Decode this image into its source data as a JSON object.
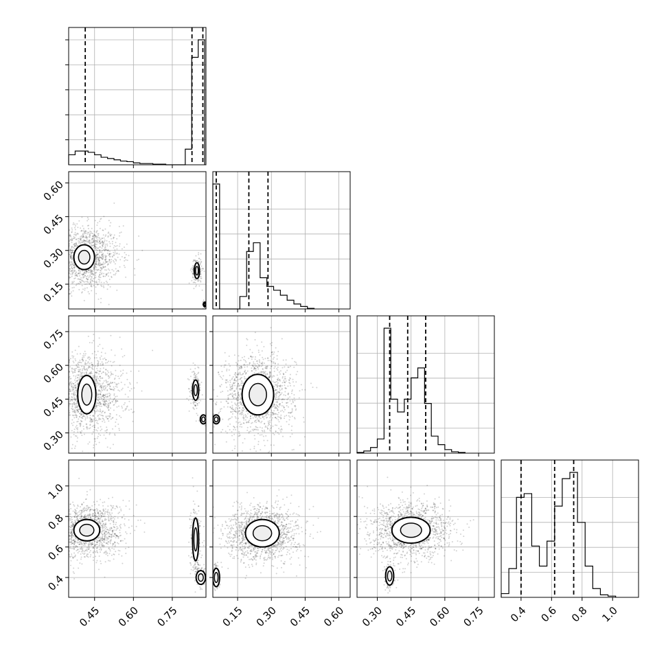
{
  "chart_data": {
    "type": "corner",
    "grid": true,
    "colors": {
      "frame": "#000000",
      "grid": "#b0b0b0",
      "points": "#000000",
      "contour_fill": "#ffffff"
    },
    "params": [
      {
        "range": [
          0.35,
          0.88
        ],
        "ticks": [
          "0.45",
          "0.60",
          "0.75"
        ],
        "tick_values": [
          0.45,
          0.6,
          0.75
        ]
      },
      {
        "range": [
          0.04,
          0.65
        ],
        "ticks": [
          "0.15",
          "0.30",
          "0.45",
          "0.60"
        ],
        "tick_values": [
          0.15,
          0.3,
          0.45,
          0.6
        ]
      },
      {
        "range": [
          0.21,
          0.82
        ],
        "ticks": [
          "0.30",
          "0.45",
          "0.60",
          "0.75"
        ],
        "tick_values": [
          0.3,
          0.45,
          0.6,
          0.75
        ]
      },
      {
        "range": [
          0.27,
          1.17
        ],
        "ticks": [
          "0.4",
          "0.6",
          "0.8",
          "1.0"
        ],
        "tick_values": [
          0.4,
          0.6,
          0.8,
          1.0
        ]
      }
    ],
    "histograms": [
      {
        "quantiles": [
          0.414,
          0.826,
          0.868
        ],
        "bins": [
          0.35,
          0.375,
          0.4,
          0.425,
          0.45,
          0.475,
          0.5,
          0.525,
          0.55,
          0.575,
          0.6,
          0.625,
          0.65,
          0.675,
          0.7,
          0.725,
          0.75,
          0.775,
          0.8,
          0.825,
          0.85,
          0.875
        ],
        "counts": [
          0.08,
          0.11,
          0.11,
          0.1,
          0.08,
          0.06,
          0.05,
          0.04,
          0.03,
          0.025,
          0.015,
          0.01,
          0.01,
          0.005,
          0.005,
          0.0,
          0.0,
          0.0,
          0.125,
          0.86,
          1.0
        ],
        "yticks": [
          0.2,
          0.4,
          0.6,
          0.8,
          1.0
        ]
      },
      {
        "quantiles": [
          0.055,
          0.2,
          0.285
        ],
        "bins": [
          0.04,
          0.07,
          0.1,
          0.13,
          0.16,
          0.19,
          0.22,
          0.25,
          0.28,
          0.31,
          0.34,
          0.37,
          0.4,
          0.43,
          0.46,
          0.49
        ],
        "counts": [
          1.0,
          0.0,
          0.0,
          0.0,
          0.1,
          0.46,
          0.53,
          0.25,
          0.18,
          0.15,
          0.11,
          0.07,
          0.04,
          0.02,
          0.005
        ],
        "yticks": [
          0.2,
          0.4,
          0.6,
          0.8
        ]
      },
      {
        "quantiles": [
          0.355,
          0.435,
          0.515
        ],
        "bins": [
          0.21,
          0.24,
          0.27,
          0.3,
          0.33,
          0.36,
          0.39,
          0.42,
          0.45,
          0.48,
          0.51,
          0.54,
          0.57,
          0.6,
          0.63,
          0.66,
          0.69
        ],
        "counts": [
          0.005,
          0.015,
          0.04,
          0.1,
          0.88,
          0.38,
          0.29,
          0.38,
          0.53,
          0.6,
          0.35,
          0.12,
          0.06,
          0.025,
          0.01,
          0.005
        ],
        "yticks": [
          0.2,
          0.4,
          0.6,
          0.8
        ]
      },
      {
        "quantiles": [
          0.4,
          0.62,
          0.745
        ],
        "bins": [
          0.27,
          0.32,
          0.37,
          0.42,
          0.47,
          0.52,
          0.57,
          0.62,
          0.67,
          0.72,
          0.77,
          0.82,
          0.87,
          0.92,
          0.97,
          1.02
        ],
        "counts": [
          0.03,
          0.23,
          0.8,
          0.83,
          0.41,
          0.25,
          0.45,
          0.73,
          0.95,
          1.0,
          0.6,
          0.25,
          0.07,
          0.02,
          0.01
        ],
        "yticks": [
          0.2,
          0.4,
          0.6,
          0.8
        ]
      }
    ],
    "pairs": [
      {
        "x": 0,
        "y": 1,
        "clusters": [
          {
            "cx": 0.41,
            "cy": 0.27,
            "sx": 0.07,
            "sy": 0.07,
            "n": 1400,
            "core_rx": 0.04,
            "core_ry": 0.055
          },
          {
            "cx": 0.845,
            "cy": 0.21,
            "sx": 0.01,
            "sy": 0.03,
            "n": 200,
            "core_rx": 0.01,
            "core_ry": 0.035
          },
          {
            "cx": 0.875,
            "cy": 0.06,
            "sx": 0.004,
            "sy": 0.008,
            "n": 60,
            "core_rx": 0.005,
            "core_ry": 0.01
          }
        ]
      },
      {
        "x": 0,
        "y": 2,
        "clusters": [
          {
            "cx": 0.42,
            "cy": 0.47,
            "sx": 0.07,
            "sy": 0.09,
            "n": 1400,
            "core_rx": 0.035,
            "core_ry": 0.085
          },
          {
            "cx": 0.84,
            "cy": 0.49,
            "sx": 0.01,
            "sy": 0.04,
            "n": 200,
            "core_rx": 0.012,
            "core_ry": 0.045
          },
          {
            "cx": 0.87,
            "cy": 0.36,
            "sx": 0.006,
            "sy": 0.008,
            "n": 80,
            "core_rx": 0.012,
            "core_ry": 0.02
          }
        ]
      },
      {
        "x": 1,
        "y": 2,
        "clusters": [
          {
            "cx": 0.24,
            "cy": 0.47,
            "sx": 0.08,
            "sy": 0.09,
            "n": 1400,
            "core_rx": 0.07,
            "core_ry": 0.09
          },
          {
            "cx": 0.055,
            "cy": 0.36,
            "sx": 0.006,
            "sy": 0.01,
            "n": 80,
            "core_rx": 0.015,
            "core_ry": 0.02
          }
        ]
      },
      {
        "x": 0,
        "y": 3,
        "clusters": [
          {
            "cx": 0.42,
            "cy": 0.71,
            "sx": 0.07,
            "sy": 0.09,
            "n": 1400,
            "core_rx": 0.05,
            "core_ry": 0.07
          },
          {
            "cx": 0.84,
            "cy": 0.65,
            "sx": 0.01,
            "sy": 0.12,
            "n": 250,
            "core_rx": 0.012,
            "core_ry": 0.14
          },
          {
            "cx": 0.86,
            "cy": 0.4,
            "sx": 0.01,
            "sy": 0.03,
            "n": 150,
            "core_rx": 0.018,
            "core_ry": 0.045
          }
        ]
      },
      {
        "x": 1,
        "y": 3,
        "clusters": [
          {
            "cx": 0.26,
            "cy": 0.69,
            "sx": 0.08,
            "sy": 0.09,
            "n": 1400,
            "core_rx": 0.075,
            "core_ry": 0.09
          },
          {
            "cx": 0.055,
            "cy": 0.4,
            "sx": 0.008,
            "sy": 0.04,
            "n": 150,
            "core_rx": 0.015,
            "core_ry": 0.06
          }
        ]
      },
      {
        "x": 2,
        "y": 3,
        "clusters": [
          {
            "cx": 0.45,
            "cy": 0.71,
            "sx": 0.09,
            "sy": 0.09,
            "n": 1400,
            "core_rx": 0.085,
            "core_ry": 0.085
          },
          {
            "cx": 0.355,
            "cy": 0.41,
            "sx": 0.012,
            "sy": 0.04,
            "n": 150,
            "core_rx": 0.018,
            "core_ry": 0.06
          }
        ]
      }
    ]
  }
}
